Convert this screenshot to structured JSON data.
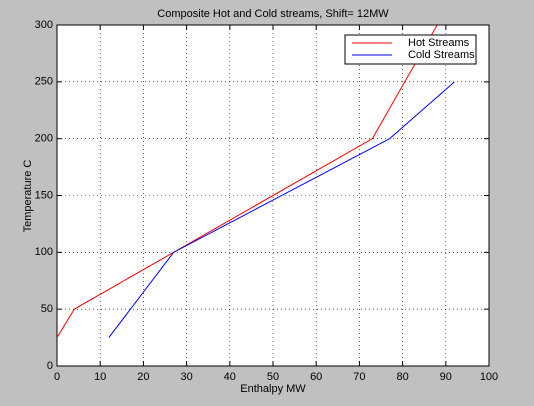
{
  "chart_data": {
    "type": "line",
    "title": "Composite Hot and Cold streams, Shift= 12MW",
    "x_label": "Enthalpy MW",
    "y_label": "Temperature C",
    "series": [
      {
        "name": "Hot Streams",
        "color": "#ff0000",
        "x": [
          0,
          4,
          27,
          73,
          88
        ],
        "values": [
          25,
          50,
          100,
          200,
          300
        ]
      },
      {
        "name": "Cold Streams",
        "color": "#0000ff",
        "x": [
          12,
          27,
          77,
          92
        ],
        "values": [
          25,
          100,
          200,
          250
        ]
      }
    ],
    "xlim": [
      0,
      100
    ],
    "xticks": [
      0,
      10,
      20,
      30,
      40,
      50,
      60,
      70,
      80,
      90,
      100
    ],
    "ylim": [
      0,
      300
    ],
    "yticks": [
      0,
      50,
      100,
      150,
      200,
      250,
      300
    ],
    "grid": true,
    "legend": "upper right"
  }
}
